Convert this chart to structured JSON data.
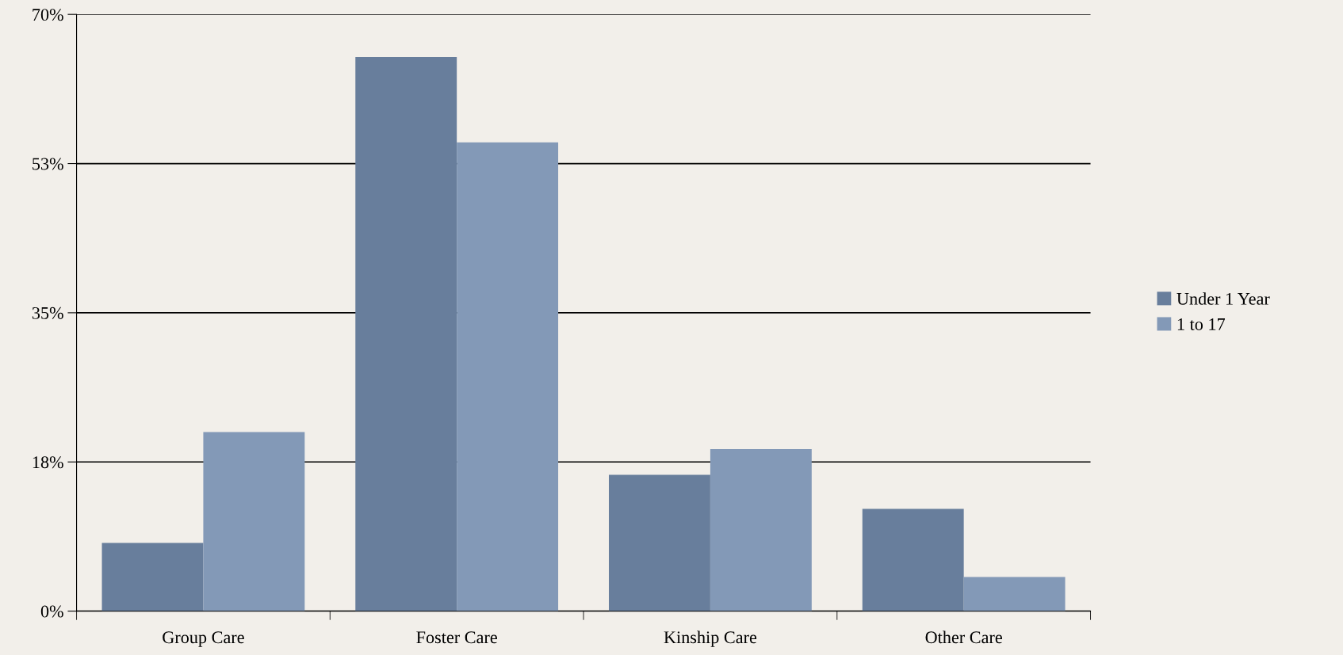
{
  "chart_data": {
    "type": "bar",
    "categories": [
      "Group Care",
      "Foster Care",
      "Kinship Care",
      "Other Care"
    ],
    "series": [
      {
        "name": "Under 1 Year",
        "color": "#687e9c",
        "values": [
          8,
          65,
          16,
          12
        ]
      },
      {
        "name": "1 to 17",
        "color": "#8399b7",
        "values": [
          21,
          55,
          19,
          4
        ]
      }
    ],
    "ylim": [
      0,
      70
    ],
    "yticks": [
      {
        "value": 0,
        "label": "0%"
      },
      {
        "value": 17.5,
        "label": "18%"
      },
      {
        "value": 35,
        "label": "35%"
      },
      {
        "value": 52.5,
        "label": "53%"
      },
      {
        "value": 70,
        "label": "70%"
      }
    ],
    "grid": "y",
    "legend": "right"
  }
}
